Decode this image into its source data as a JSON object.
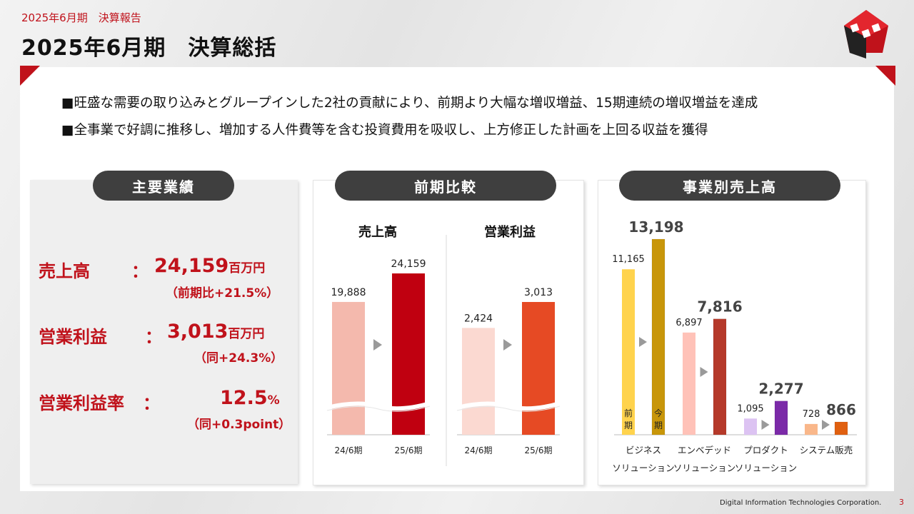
{
  "header": {
    "subtitle": "2025年6月期　決算報告",
    "title": "2025年6月期　決算総括"
  },
  "bullets": [
    "■旺盛な需要の取り込みとグループインした2社の貢献により、前期より大幅な増収増益、15期連続の増収増益を達成",
    "■全事業で好調に推移し、増加する人件費等を含む投資費用を吸収し、上方修正した計画を上回る収益を獲得"
  ],
  "panels": {
    "results": {
      "title": "主要業績",
      "items": [
        {
          "label": "売上高",
          "colon": "：",
          "value": "24,159",
          "unit": "百万円",
          "note": "（前期比+21.5%）"
        },
        {
          "label": "営業利益",
          "colon": "：",
          "value": "3,013",
          "unit": "百万円",
          "note": "（同+24.3%）"
        },
        {
          "label": "営業利益率",
          "colon": "：",
          "value": "12.5",
          "unit": "%",
          "note": "（同+0.3point）"
        }
      ]
    },
    "comparison": {
      "title": "前期比較"
    },
    "segments": {
      "title": "事業別売上高"
    }
  },
  "chart_data": [
    {
      "type": "bar",
      "title": "売上高",
      "categories": [
        "24/6期",
        "25/6期"
      ],
      "values": [
        19888,
        24159
      ],
      "labels": [
        "19,888",
        "24,159"
      ],
      "colors": [
        "#f4b9ad",
        "#c00010"
      ]
    },
    {
      "type": "bar",
      "title": "営業利益",
      "categories": [
        "24/6期",
        "25/6期"
      ],
      "values": [
        2424,
        3013
      ],
      "labels": [
        "2,424",
        "3,013"
      ],
      "colors": [
        "#fbd9d1",
        "#e64a24"
      ]
    },
    {
      "type": "bar",
      "title": "",
      "categories": [
        "ビジネス\nソリューション",
        "エンベデッド\nソリューション",
        "プロダクト\nソリューション",
        "システム販売"
      ],
      "category_lines": [
        [
          "ビジネス",
          "ソリューション"
        ],
        [
          "エンベデッド",
          "ソリューション"
        ],
        [
          "プロダクト",
          "ソリューション"
        ],
        [
          "システム販売"
        ]
      ],
      "series": [
        {
          "name": "前期",
          "values": [
            11165,
            6897,
            1095,
            728
          ],
          "labels": [
            "11,165",
            "6,897",
            "1,095",
            "728"
          ],
          "colors": [
            "#ffd34d",
            "#ffc2b8",
            "#dcc3f2",
            "#f9b78a"
          ]
        },
        {
          "name": "今期",
          "values": [
            13198,
            7816,
            2277,
            866
          ],
          "labels": [
            "13,198",
            "7,816",
            "2,277",
            "866"
          ],
          "colors": [
            "#c8960a",
            "#b5392a",
            "#7b2aa8",
            "#e06010"
          ]
        }
      ],
      "bar_text": {
        "prev": [
          "前",
          "期"
        ],
        "curr": [
          "今",
          "期"
        ]
      }
    }
  ],
  "footer": {
    "company": "Digital Information Technologies Corporation.",
    "page": "3"
  }
}
